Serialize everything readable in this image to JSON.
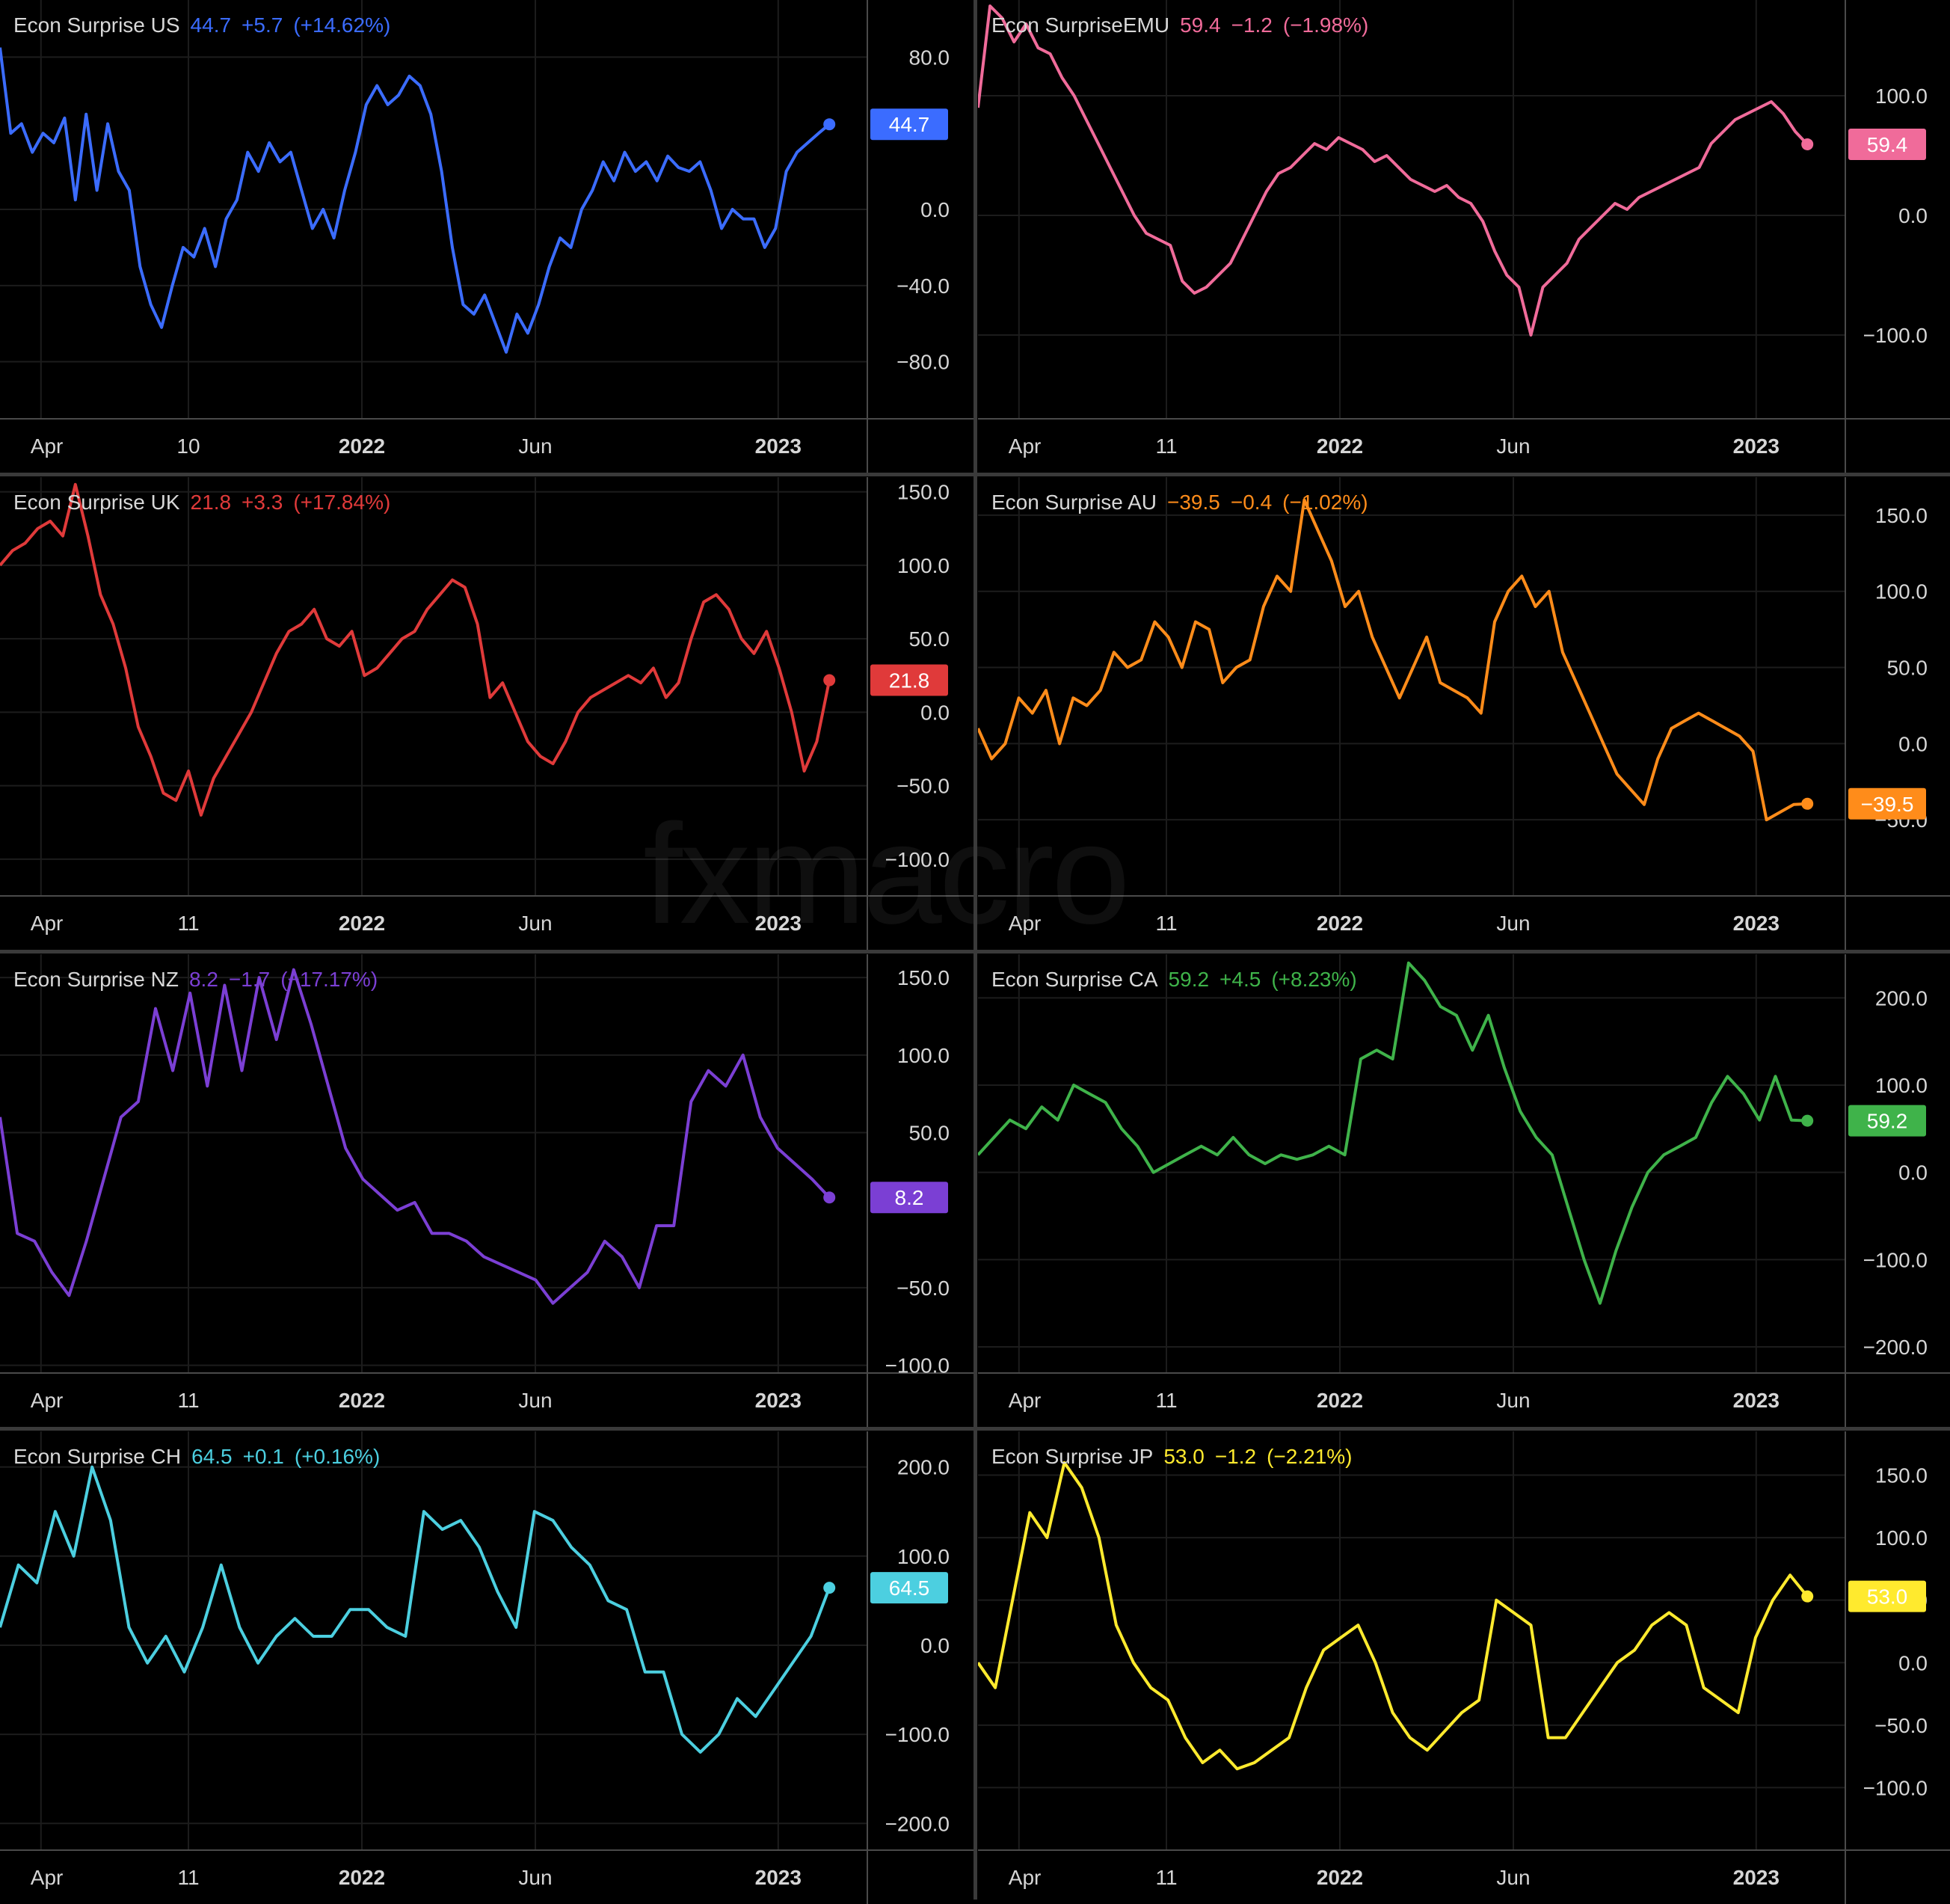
{
  "watermark": "fxmacro",
  "x_tick_labels": [
    "Apr",
    "10",
    "2022",
    "Jun",
    "2023"
  ],
  "chart_data": [
    {
      "type": "line",
      "id": "us",
      "color": "#3b6cff",
      "name": "Econ Surprise US",
      "last": "44.7",
      "change": "+5.7",
      "change_pct": "(+14.62%)",
      "ylim": [
        -110,
        110
      ],
      "y_ticks": [
        "80.0",
        "0.0",
        "−40.0",
        "−80.0"
      ],
      "y_tick_values": [
        80,
        0,
        -40,
        -80
      ],
      "x_ticks": [
        "Apr",
        "10",
        "2022",
        "Jun",
        "2023"
      ],
      "values": [
        85,
        40,
        45,
        30,
        40,
        35,
        48,
        5,
        50,
        10,
        45,
        20,
        10,
        -30,
        -50,
        -62,
        -40,
        -20,
        -25,
        -10,
        -30,
        -5,
        5,
        30,
        20,
        35,
        25,
        30,
        10,
        -10,
        0,
        -15,
        10,
        30,
        55,
        65,
        55,
        60,
        70,
        65,
        50,
        20,
        -20,
        -50,
        -55,
        -45,
        -60,
        -75,
        -55,
        -65,
        -50,
        -30,
        -15,
        -20,
        0,
        10,
        25,
        15,
        30,
        20,
        25,
        15,
        28,
        22,
        20,
        25,
        10,
        -10,
        0,
        -5,
        -5,
        -20,
        -10,
        20,
        30,
        35,
        40,
        44.7
      ]
    },
    {
      "type": "line",
      "id": "emu",
      "color": "#f06b9a",
      "name": "Econ SurpriseEMU",
      "last": "59.4",
      "change": "−1.2",
      "change_pct": "(−1.98%)",
      "ylim": [
        -170,
        180
      ],
      "y_ticks": [
        "100.0",
        "0.0",
        "−100.0"
      ],
      "y_tick_values": [
        100,
        0,
        -100
      ],
      "x_ticks": [
        "Apr",
        "11",
        "2022",
        "Jun",
        "2023"
      ],
      "values": [
        90,
        175,
        165,
        145,
        160,
        140,
        135,
        115,
        100,
        80,
        60,
        40,
        20,
        0,
        -15,
        -20,
        -25,
        -55,
        -65,
        -60,
        -50,
        -40,
        -20,
        0,
        20,
        35,
        40,
        50,
        60,
        55,
        65,
        60,
        55,
        45,
        50,
        40,
        30,
        25,
        20,
        25,
        15,
        10,
        -5,
        -30,
        -50,
        -60,
        -100,
        -60,
        -50,
        -40,
        -20,
        -10,
        0,
        10,
        5,
        15,
        20,
        25,
        30,
        35,
        40,
        60,
        70,
        80,
        85,
        90,
        95,
        85,
        70,
        59.4
      ]
    },
    {
      "type": "line",
      "id": "uk",
      "color": "#e03a3a",
      "name": "Econ Surprise UK",
      "last": "21.8",
      "change": "+3.3",
      "change_pct": "(+17.84%)",
      "ylim": [
        -125,
        160
      ],
      "y_ticks": [
        "150.0",
        "100.0",
        "50.0",
        "0.0",
        "−50.0",
        "−100.0"
      ],
      "y_tick_values": [
        150,
        100,
        50,
        0,
        -50,
        -100
      ],
      "x_ticks": [
        "Apr",
        "11",
        "2022",
        "Jun",
        "2023"
      ],
      "values": [
        100,
        110,
        115,
        125,
        130,
        120,
        155,
        120,
        80,
        60,
        30,
        -10,
        -30,
        -55,
        -60,
        -40,
        -70,
        -45,
        -30,
        -15,
        0,
        20,
        40,
        55,
        60,
        70,
        50,
        45,
        55,
        25,
        30,
        40,
        50,
        55,
        70,
        80,
        90,
        85,
        60,
        10,
        20,
        0,
        -20,
        -30,
        -35,
        -20,
        0,
        10,
        15,
        20,
        25,
        20,
        30,
        10,
        20,
        50,
        75,
        80,
        70,
        50,
        40,
        55,
        30,
        0,
        -40,
        -20,
        21.8
      ]
    },
    {
      "type": "line",
      "id": "au",
      "color": "#ff8c1a",
      "name": "Econ Surprise AU",
      "last": "−39.5",
      "change": "−0.4",
      "change_pct": "(−1.02%)",
      "ylim": [
        -100,
        175
      ],
      "y_ticks": [
        "150.0",
        "100.0",
        "50.0",
        "0.0",
        "−50.0"
      ],
      "y_tick_values": [
        150,
        100,
        50,
        0,
        -50
      ],
      "x_ticks": [
        "Apr",
        "11",
        "2022",
        "Jun",
        "2023"
      ],
      "values": [
        10,
        -10,
        0,
        30,
        20,
        35,
        0,
        30,
        25,
        35,
        60,
        50,
        55,
        80,
        70,
        50,
        80,
        75,
        40,
        50,
        55,
        90,
        110,
        100,
        160,
        140,
        120,
        90,
        100,
        70,
        50,
        30,
        50,
        70,
        40,
        35,
        30,
        20,
        80,
        100,
        110,
        90,
        100,
        60,
        40,
        20,
        0,
        -20,
        -30,
        -40,
        -10,
        10,
        15,
        20,
        15,
        10,
        5,
        -5,
        -50,
        -45,
        -40,
        -39.5
      ]
    },
    {
      "type": "line",
      "id": "nz",
      "color": "#7b3fd4",
      "name": "Econ Surprise NZ",
      "last": "8.2",
      "change": "−1.7",
      "change_pct": "(−17.17%)",
      "ylim": [
        -105,
        165
      ],
      "y_ticks": [
        "150.0",
        "100.0",
        "50.0",
        "−50.0",
        "−100.0"
      ],
      "y_tick_values": [
        150,
        100,
        50,
        -50,
        -100
      ],
      "x_ticks": [
        "Apr",
        "11",
        "2022",
        "Jun",
        "2023"
      ],
      "values": [
        60,
        -15,
        -20,
        -40,
        -55,
        -20,
        20,
        60,
        70,
        130,
        90,
        140,
        80,
        145,
        90,
        150,
        110,
        155,
        120,
        80,
        40,
        20,
        10,
        0,
        5,
        -15,
        -15,
        -20,
        -30,
        -35,
        -40,
        -45,
        -60,
        -50,
        -40,
        -20,
        -30,
        -50,
        -10,
        -10,
        70,
        90,
        80,
        100,
        60,
        40,
        30,
        20,
        8.2
      ]
    },
    {
      "type": "line",
      "id": "ca",
      "color": "#3fb34a",
      "name": "Econ Surprise CA",
      "last": "59.2",
      "change": "+4.5",
      "change_pct": "(+8.23%)",
      "ylim": [
        -230,
        250
      ],
      "y_ticks": [
        "200.0",
        "100.0",
        "0.0",
        "−100.0",
        "−200.0"
      ],
      "y_tick_values": [
        200,
        100,
        0,
        -100,
        -200
      ],
      "x_ticks": [
        "Apr",
        "11",
        "2022",
        "Jun",
        "2023"
      ],
      "values": [
        20,
        40,
        60,
        50,
        75,
        60,
        100,
        90,
        80,
        50,
        30,
        0,
        10,
        20,
        30,
        20,
        40,
        20,
        10,
        20,
        15,
        20,
        30,
        20,
        130,
        140,
        130,
        240,
        220,
        190,
        180,
        140,
        180,
        120,
        70,
        40,
        20,
        -40,
        -100,
        -150,
        -90,
        -40,
        0,
        20,
        30,
        40,
        80,
        110,
        90,
        60,
        110,
        60,
        59.2
      ]
    },
    {
      "type": "line",
      "id": "ch",
      "color": "#4ccfe0",
      "name": "Econ Surprise CH",
      "last": "64.5",
      "change": "+0.1",
      "change_pct": "(+0.16%)",
      "ylim": [
        -230,
        240
      ],
      "y_ticks": [
        "200.0",
        "100.0",
        "0.0",
        "−100.0",
        "−200.0"
      ],
      "y_tick_values": [
        200,
        100,
        0,
        -100,
        -200
      ],
      "x_ticks": [
        "Apr",
        "11",
        "2022",
        "Jun",
        "2023"
      ],
      "values": [
        20,
        90,
        70,
        150,
        100,
        200,
        140,
        20,
        -20,
        10,
        -30,
        20,
        90,
        20,
        -20,
        10,
        30,
        10,
        10,
        40,
        40,
        20,
        10,
        150,
        130,
        140,
        110,
        60,
        20,
        150,
        140,
        110,
        90,
        50,
        40,
        -30,
        -30,
        -100,
        -120,
        -100,
        -60,
        -80,
        -50,
        -20,
        10,
        64.5
      ]
    },
    {
      "type": "line",
      "id": "jp",
      "color": "#ffea2e",
      "name": "Econ Surprise JP",
      "last": "53.0",
      "change": "−1.2",
      "change_pct": "(−2.21%)",
      "ylim": [
        -150,
        185
      ],
      "y_ticks": [
        "150.0",
        "100.0",
        "50.0",
        "0.0",
        "−50.0",
        "−100.0"
      ],
      "y_tick_values": [
        150,
        100,
        50,
        0,
        -50,
        -100
      ],
      "x_ticks": [
        "Apr",
        "11",
        "2022",
        "Jun",
        "2023"
      ],
      "values": [
        0,
        -20,
        50,
        120,
        100,
        160,
        140,
        100,
        30,
        0,
        -20,
        -30,
        -60,
        -80,
        -70,
        -85,
        -80,
        -70,
        -60,
        -20,
        10,
        20,
        30,
        0,
        -40,
        -60,
        -70,
        -55,
        -40,
        -30,
        50,
        40,
        30,
        -60,
        -60,
        -40,
        -20,
        0,
        10,
        30,
        40,
        30,
        -20,
        -30,
        -40,
        20,
        50,
        70,
        53.0
      ]
    }
  ]
}
